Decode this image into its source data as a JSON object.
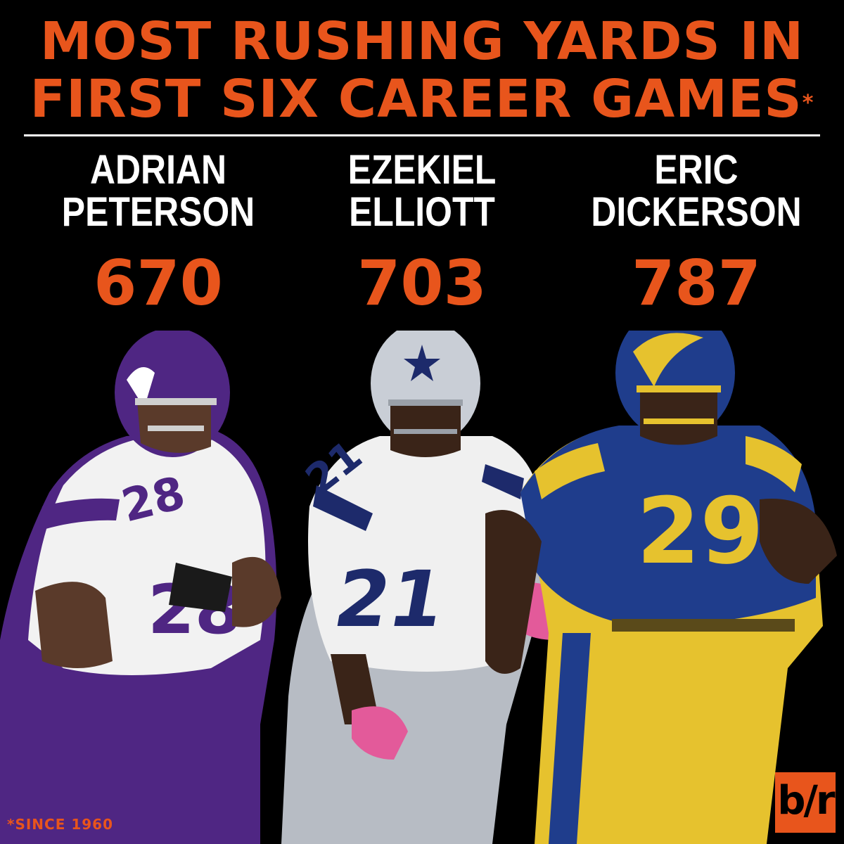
{
  "headline": {
    "line1": "MOST RUSHING YARDS IN",
    "line2": "FIRST SIX CAREER GAMES",
    "asterisk": "*"
  },
  "players": [
    {
      "first": "ADRIAN",
      "last": "PETERSON",
      "yards": "670",
      "jersey": "28"
    },
    {
      "first": "EZEKIEL",
      "last": "ELLIOTT",
      "yards": "703",
      "jersey": "21"
    },
    {
      "first": "ERIC",
      "last": "DICKERSON",
      "yards": "787",
      "jersey": "29"
    }
  ],
  "footnote": "*SINCE 1960",
  "logo": "b/r",
  "colors": {
    "accent": "#e8551c",
    "background": "#000000",
    "vikings_purple": "#4f2683",
    "cowboys_navy": "#1d2a6b",
    "cowboys_silver": "#b7bcc4",
    "rams_blue": "#1f3d8c",
    "rams_gold": "#e6c22e"
  }
}
